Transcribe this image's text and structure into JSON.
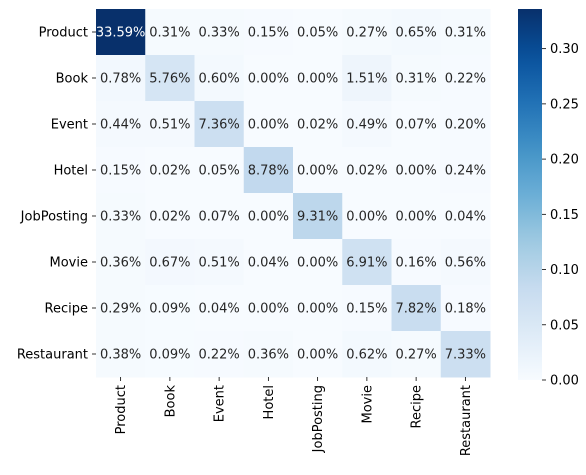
{
  "chart_data": {
    "type": "heatmap",
    "title": "",
    "xlabel": "",
    "ylabel": "",
    "row_labels": [
      "Product",
      "Book",
      "Event",
      "Hotel",
      "JobPosting",
      "Movie",
      "Recipe",
      "Restaurant"
    ],
    "col_labels": [
      "Product",
      "Book",
      "Event",
      "Hotel",
      "JobPosting",
      "Movie",
      "Recipe",
      "Restaurant"
    ],
    "values": [
      [
        0.3359,
        0.0031,
        0.0033,
        0.0015,
        0.0005,
        0.0027,
        0.0065,
        0.0031
      ],
      [
        0.0078,
        0.0576,
        0.006,
        0.0,
        0.0,
        0.0151,
        0.0031,
        0.0022
      ],
      [
        0.0044,
        0.0051,
        0.0736,
        0.0,
        0.0002,
        0.0049,
        0.0007,
        0.002
      ],
      [
        0.0015,
        0.0002,
        0.0005,
        0.0878,
        0.0,
        0.0002,
        0.0,
        0.0024
      ],
      [
        0.0033,
        0.0002,
        0.0007,
        0.0,
        0.0931,
        0.0,
        0.0,
        0.0004
      ],
      [
        0.0036,
        0.0067,
        0.0051,
        0.0004,
        0.0,
        0.0691,
        0.0016,
        0.0056
      ],
      [
        0.0029,
        0.0009,
        0.0004,
        0.0,
        0.0,
        0.0015,
        0.0782,
        0.0018
      ],
      [
        0.0038,
        0.0009,
        0.0022,
        0.0036,
        0.0,
        0.0062,
        0.0027,
        0.0733
      ]
    ],
    "cell_labels": [
      [
        "33.59%",
        "0.31%",
        "0.33%",
        "0.15%",
        "0.05%",
        "0.27%",
        "0.65%",
        "0.31%"
      ],
      [
        "0.78%",
        "5.76%",
        "0.60%",
        "0.00%",
        "0.00%",
        "1.51%",
        "0.31%",
        "0.22%"
      ],
      [
        "0.44%",
        "0.51%",
        "7.36%",
        "0.00%",
        "0.02%",
        "0.49%",
        "0.07%",
        "0.20%"
      ],
      [
        "0.15%",
        "0.02%",
        "0.05%",
        "8.78%",
        "0.00%",
        "0.02%",
        "0.00%",
        "0.24%"
      ],
      [
        "0.33%",
        "0.02%",
        "0.07%",
        "0.00%",
        "9.31%",
        "0.00%",
        "0.00%",
        "0.04%"
      ],
      [
        "0.36%",
        "0.67%",
        "0.51%",
        "0.04%",
        "0.00%",
        "6.91%",
        "0.16%",
        "0.56%"
      ],
      [
        "0.29%",
        "0.09%",
        "0.04%",
        "0.00%",
        "0.00%",
        "0.15%",
        "7.82%",
        "0.18%"
      ],
      [
        "0.38%",
        "0.09%",
        "0.22%",
        "0.36%",
        "0.00%",
        "0.62%",
        "0.27%",
        "7.33%"
      ]
    ],
    "colormap": "Blues",
    "vmin": 0.0,
    "vmax": 0.3359,
    "colorbar_ticks": [
      "0.00",
      "0.05",
      "0.10",
      "0.15",
      "0.20",
      "0.25",
      "0.30"
    ]
  },
  "colors": {
    "low": "#f7fbff",
    "high": "#08306b",
    "text_dark": "#262626",
    "text_light": "#ffffff"
  }
}
